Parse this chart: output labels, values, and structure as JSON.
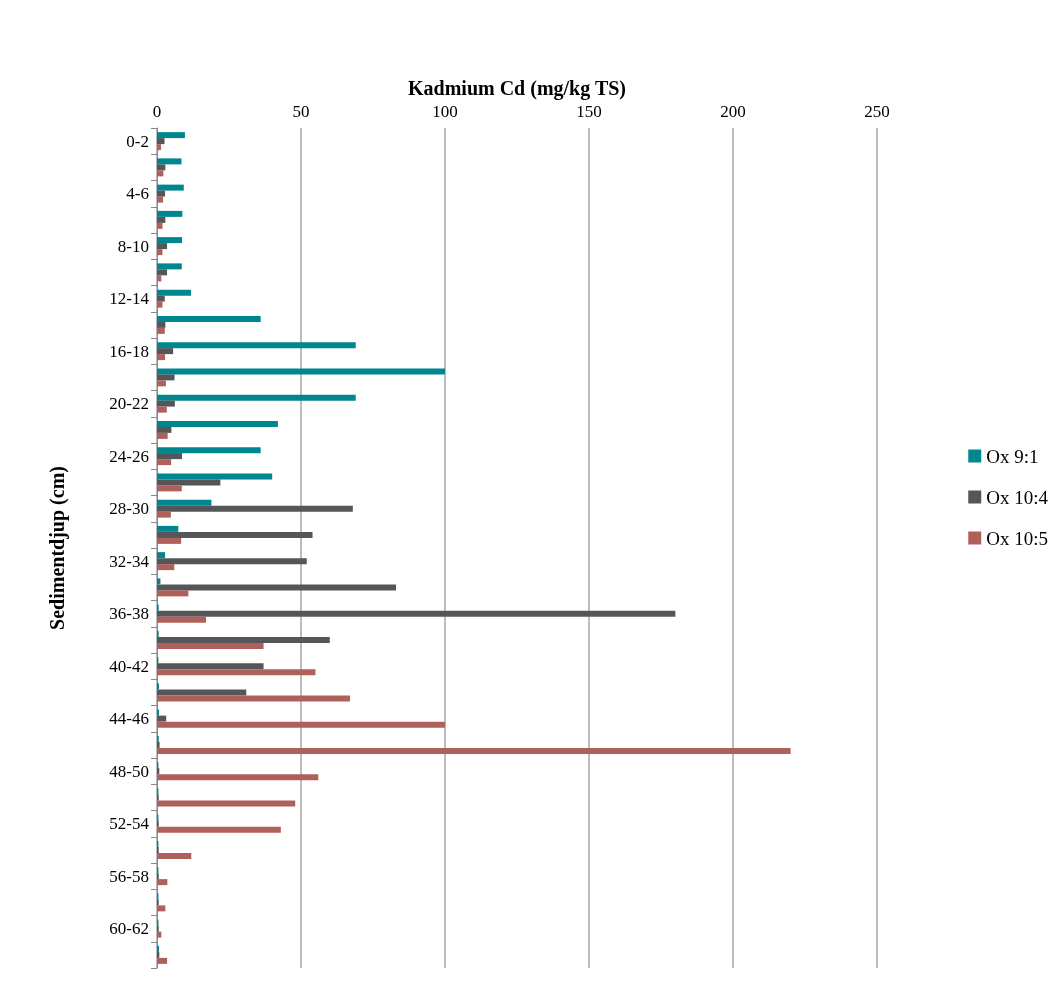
{
  "chart_data": {
    "type": "bar",
    "orientation": "horizontal",
    "xlabel": "Kadmium Cd (mg/kg TS)",
    "ylabel": "Sedimentdjup (cm)",
    "categories": [
      "0-2",
      null,
      "4-6",
      null,
      "8-10",
      null,
      "12-14",
      null,
      "16-18",
      null,
      "20-22",
      null,
      "24-26",
      null,
      "28-30",
      null,
      "32-34",
      null,
      "36-38",
      null,
      "40-42",
      null,
      "44-46",
      null,
      "48-50",
      null,
      "52-54",
      null,
      "56-58",
      null,
      "60-62",
      null
    ],
    "series": [
      {
        "name": "Ox 9:1",
        "color": "#00868f",
        "values": [
          9.7,
          8.5,
          9.3,
          8.8,
          8.7,
          8.6,
          11.8,
          36,
          69,
          100,
          69,
          42,
          36,
          40,
          18.9,
          7.4,
          2.8,
          1.2,
          0.6,
          0.6,
          0.5,
          0.7,
          0.7,
          0.6,
          0.5,
          0.5,
          0.5,
          0.5,
          0.5,
          0.5,
          0.5,
          0.7
        ]
      },
      {
        "name": "Ox 10:4",
        "color": "#545659",
        "values": [
          2.6,
          2.9,
          2.8,
          2.9,
          3.5,
          3.5,
          2.7,
          2.9,
          5.6,
          6.1,
          6.2,
          5,
          8.7,
          22,
          68,
          54,
          52,
          83,
          180,
          60,
          37,
          31,
          3.2,
          0.9,
          0.8,
          0.6,
          0.6,
          0.6,
          0.6,
          0.6,
          0.6,
          0.8
        ]
      },
      {
        "name": "Ox 10:5",
        "color": "#b0605a",
        "values": [
          1.4,
          2.2,
          2.1,
          1.9,
          1.9,
          1.5,
          1.9,
          2.7,
          2.8,
          3.1,
          3.4,
          3.7,
          4.9,
          8.6,
          4.8,
          8.4,
          6,
          10.9,
          17,
          37,
          55,
          67,
          100,
          220,
          56,
          48,
          43,
          11.9,
          3.6,
          2.9,
          1.5,
          3.5
        ]
      }
    ],
    "xlim": [
      0,
      250
    ],
    "xticks": [
      0,
      50,
      100,
      150,
      200,
      250
    ],
    "grid": "x",
    "legend": "right"
  }
}
